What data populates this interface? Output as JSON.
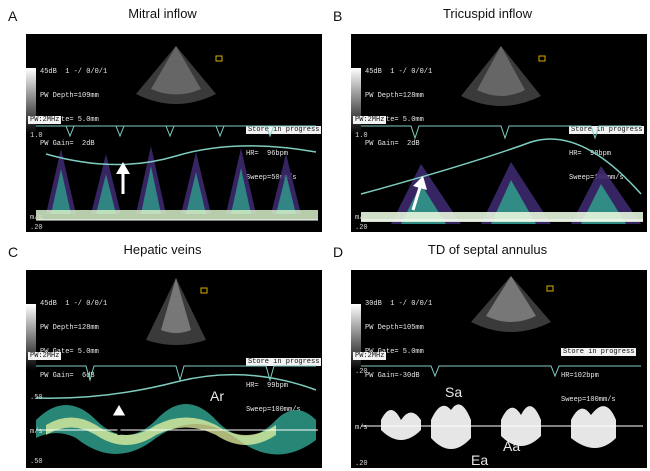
{
  "panels": [
    {
      "letter": "A",
      "title": "Mitral inflow",
      "header": [
        "45dB  1 -/ 0/0/1",
        "PW Depth=109mm",
        "PW Gate= 5.0mm",
        "PW Gain=  2dB"
      ],
      "store": [
        "Store in progress",
        "HR=  96bpm",
        "Sweep=50mm/s"
      ],
      "freq": "PW:2MHz",
      "scale": [
        "1.0",
        "m/s",
        ".20"
      ]
    },
    {
      "letter": "B",
      "title": "Tricuspid inflow",
      "header": [
        "45dB  1 -/ 0/0/1",
        "PW Depth=128mm",
        "PW Gate= 5.0mm",
        "PW Gain=  2dB"
      ],
      "store": [
        "Store in progress",
        "HR=  98bpm",
        "Sweep=100mm/s"
      ],
      "freq": "PW:2MHz",
      "scale": [
        "1.0",
        "m/s",
        ".20"
      ]
    },
    {
      "letter": "C",
      "title": "Hepatic veins",
      "header": [
        "45dB  1 -/ 0/0/1",
        "PW Depth=128mm",
        "PW Gate= 5.0mm",
        "PW Gain=  6dB"
      ],
      "store": [
        "Store in progress",
        "HR=  99bpm",
        "Sweep=100mm/s"
      ],
      "freq": "PW:2MHz",
      "scale": [
        ".50",
        "m/s",
        ".50"
      ],
      "labels": [
        "Ar"
      ]
    },
    {
      "letter": "D",
      "title": "TD of septal annulus",
      "header": [
        "30dB  1 -/ 0/0/1",
        "PW Depth=105mm",
        "PW Gate= 5.0mm",
        "PW Gain=-30dB"
      ],
      "store": [
        "Store in progress",
        "HR=102bpm",
        "Sweep=100mm/s"
      ],
      "freq": "PW:2MHz",
      "scale": [
        ".20",
        "m/s",
        ".20"
      ],
      "labels": [
        "Sa",
        "Aa",
        "Ea"
      ]
    }
  ]
}
